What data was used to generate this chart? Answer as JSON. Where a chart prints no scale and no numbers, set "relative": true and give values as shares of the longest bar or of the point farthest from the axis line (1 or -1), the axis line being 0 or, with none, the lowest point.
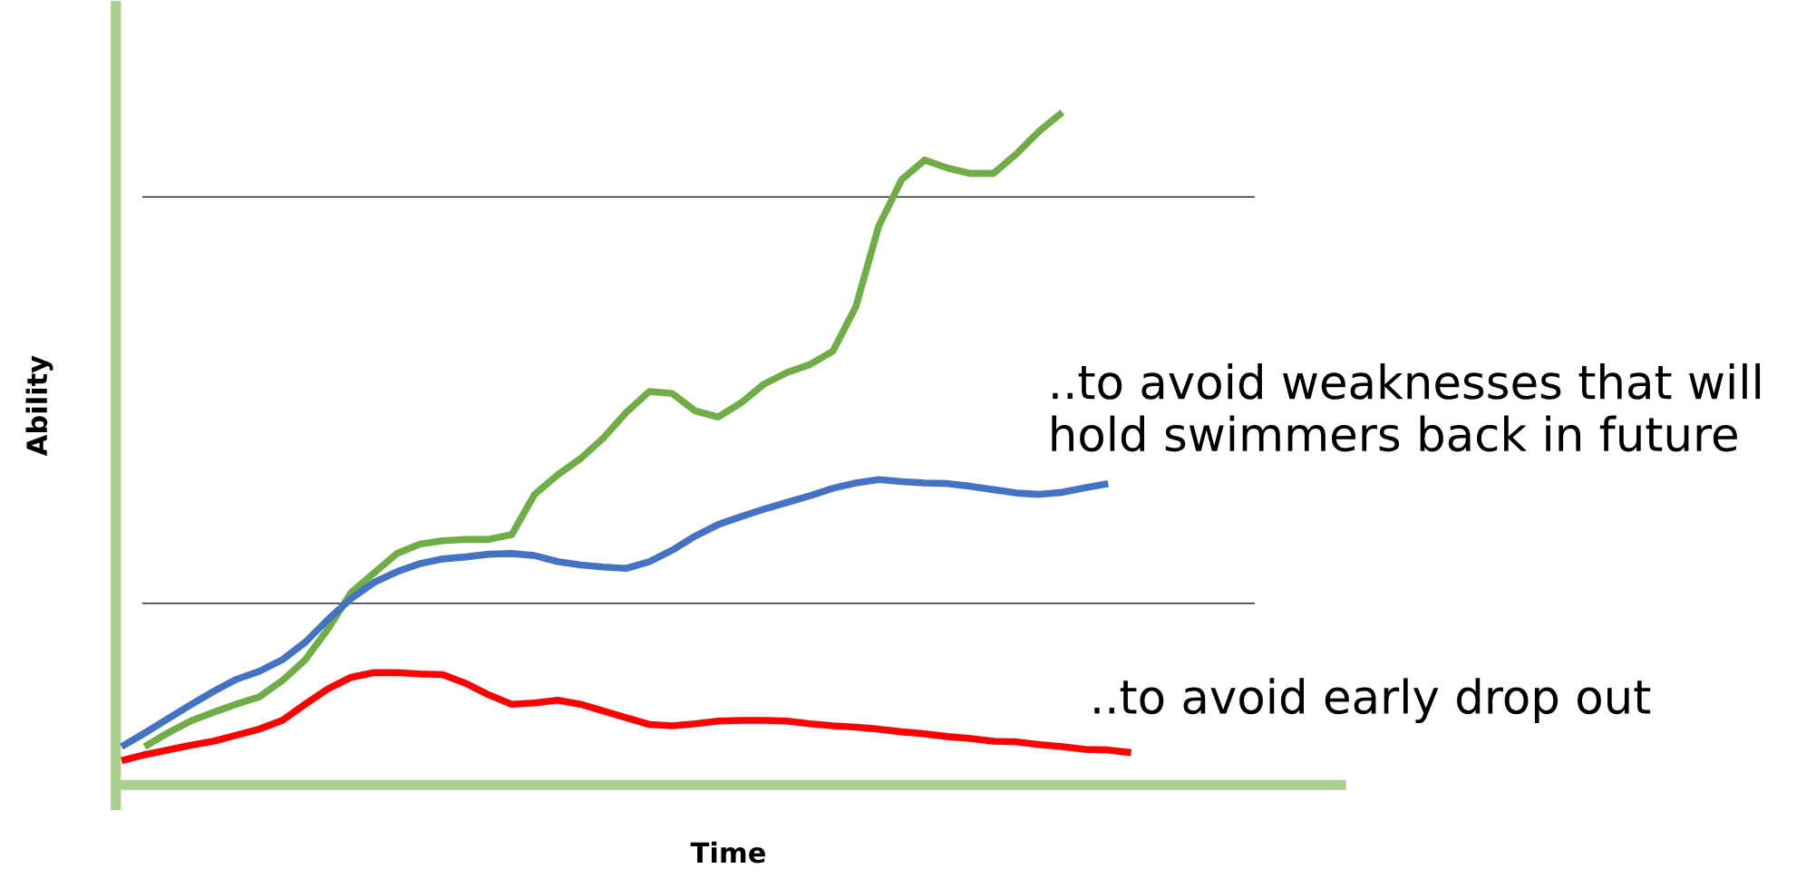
{
  "chart_data": {
    "type": "line",
    "relative": true,
    "xlabel": "Time",
    "ylabel": "Ability",
    "tick_labels": false,
    "marker": "none",
    "line_style": "solid",
    "categories": [
      null,
      null,
      null,
      null,
      null,
      null,
      null,
      null,
      null,
      null,
      null,
      null,
      null,
      null,
      null,
      null,
      null,
      null,
      null,
      null,
      null,
      null,
      null,
      null,
      null,
      null,
      null,
      null,
      null,
      null,
      null,
      null,
      null,
      null,
      null,
      null,
      null,
      null,
      null,
      null,
      null,
      null,
      null,
      null,
      null
    ],
    "ref_lines": [
      {
        "axis": "y",
        "value": 0.874,
        "color": "#000000"
      },
      {
        "axis": "y",
        "value": 0.27,
        "color": "#000000"
      }
    ],
    "annotations": [
      "..to avoid weaknesses that will\nhold swimmers back in future",
      "..to avoid early drop out"
    ],
    "series": [
      {
        "color": "#70ad47",
        "values": [
          null,
          0.057,
          0.077,
          0.095,
          0.108,
          0.12,
          0.131,
          0.155,
          0.186,
          0.232,
          0.286,
          0.315,
          0.344,
          0.358,
          0.363,
          0.365,
          0.365,
          0.372,
          0.432,
          0.461,
          0.485,
          0.516,
          0.554,
          0.585,
          0.582,
          0.556,
          0.547,
          0.568,
          0.596,
          0.613,
          0.625,
          0.645,
          0.711,
          0.831,
          0.9,
          0.929,
          0.917,
          0.909,
          0.909,
          0.938,
          0.972,
          1.0,
          null,
          null,
          null
        ]
      },
      {
        "color": "#4472c4",
        "values": [
          0.057,
          0.077,
          0.098,
          0.119,
          0.139,
          0.157,
          0.169,
          0.186,
          0.212,
          0.246,
          0.277,
          0.301,
          0.317,
          0.329,
          0.336,
          0.339,
          0.343,
          0.344,
          0.341,
          0.332,
          0.327,
          0.324,
          0.322,
          0.332,
          0.349,
          0.37,
          0.387,
          0.399,
          0.41,
          0.42,
          0.43,
          0.441,
          0.449,
          0.454,
          0.451,
          0.449,
          0.448,
          0.444,
          0.439,
          0.434,
          0.432,
          0.435,
          0.442,
          0.448,
          null
        ]
      },
      {
        "color": "#ff0000",
        "values": [
          0.036,
          0.045,
          0.052,
          0.059,
          0.065,
          0.074,
          0.083,
          0.096,
          0.12,
          0.143,
          0.16,
          0.167,
          0.167,
          0.165,
          0.164,
          0.151,
          0.134,
          0.12,
          0.122,
          0.126,
          0.12,
          0.11,
          0.1,
          0.09,
          0.088,
          0.091,
          0.095,
          0.096,
          0.096,
          0.095,
          0.091,
          0.088,
          0.086,
          0.083,
          0.079,
          0.076,
          0.072,
          0.069,
          0.065,
          0.064,
          0.06,
          0.057,
          0.053,
          0.052,
          0.048
        ]
      }
    ]
  }
}
